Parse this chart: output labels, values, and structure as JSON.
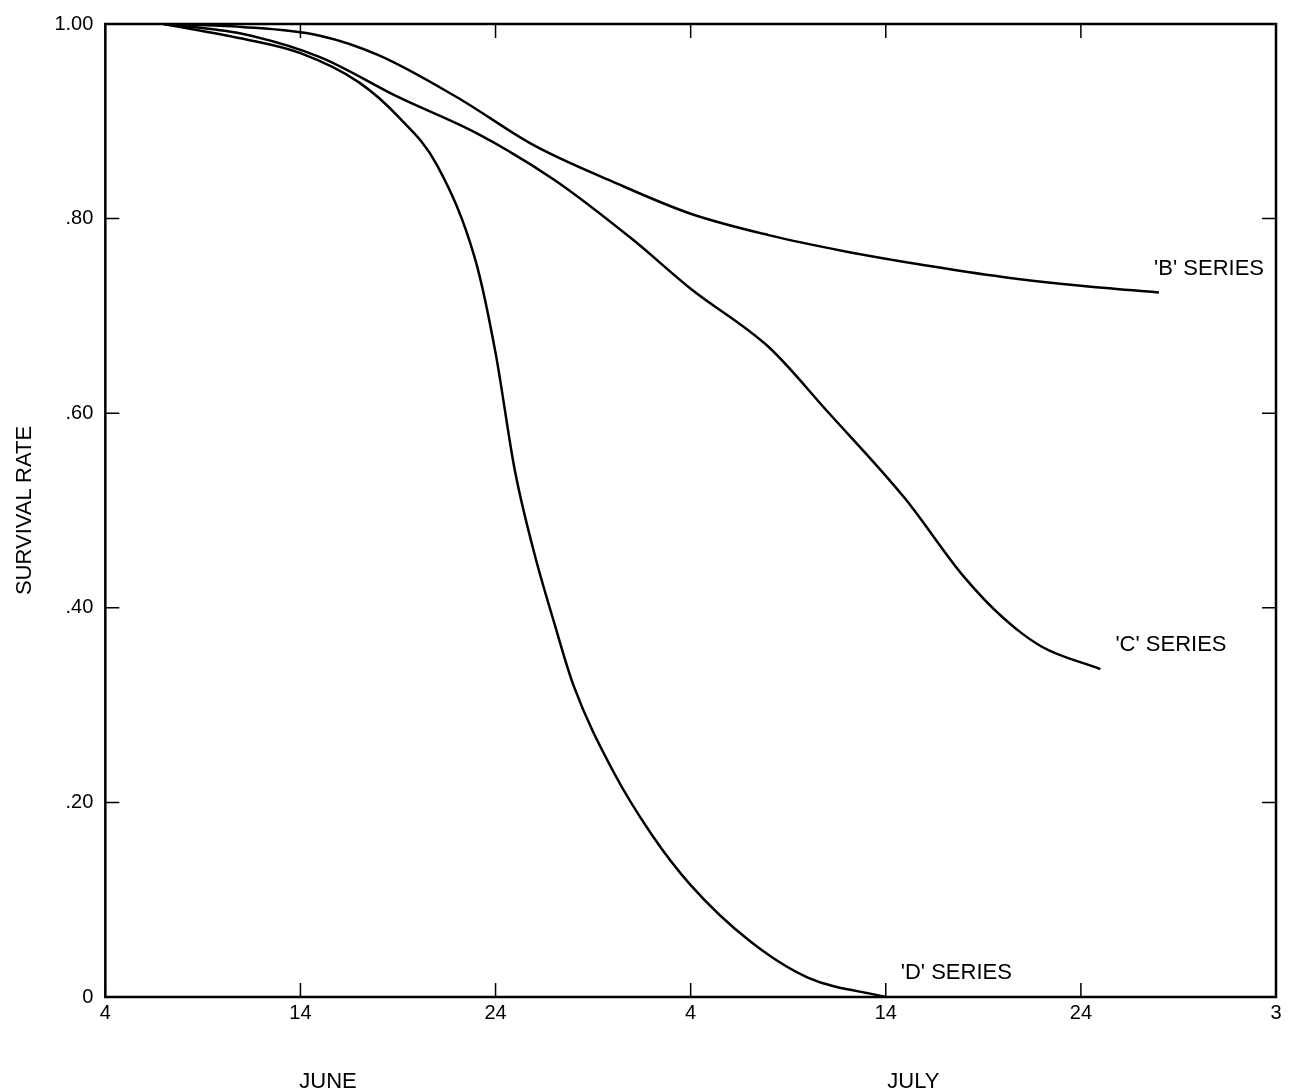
{
  "chart_data": {
    "type": "line",
    "ylabel": "SURVIVAL RATE",
    "xlim": [
      "--06-04",
      "--08-03"
    ],
    "xticks": [
      {
        "value": "--06-04",
        "label": "4"
      },
      {
        "value": "--06-14",
        "label": "14"
      },
      {
        "value": "--06-24",
        "label": "24"
      },
      {
        "value": "--07-04",
        "label": "4"
      },
      {
        "value": "--07-14",
        "label": "14"
      },
      {
        "value": "--07-24",
        "label": "24"
      },
      {
        "value": "--08-03",
        "label": "3"
      }
    ],
    "ylim": [
      0,
      1
    ],
    "yticks": [
      {
        "value": 0,
        "label": "0"
      },
      {
        "value": 0.2,
        "label": ".20"
      },
      {
        "value": 0.4,
        "label": ".40"
      },
      {
        "value": 0.6,
        "label": ".60"
      },
      {
        "value": 0.8,
        "label": ".80"
      },
      {
        "value": 1,
        "label": "1.00"
      }
    ],
    "grid": false,
    "legend": false,
    "marker": "none",
    "line_style": "solid",
    "annotations": [
      "JUNE",
      "JULY"
    ],
    "series": [
      {
        "name": "'B' SERIES",
        "color": "#000000",
        "x": [
          "--06-07",
          "--06-11",
          "--06-15",
          "--06-18",
          "--06-22",
          "--06-26",
          "--06-30",
          "--07-04",
          "--07-08",
          "--07-12",
          "--07-16",
          "--07-20",
          "--07-24",
          "--07-28"
        ],
        "values": [
          1.0,
          0.997,
          0.988,
          0.968,
          0.925,
          0.875,
          0.838,
          0.805,
          0.783,
          0.766,
          0.752,
          0.74,
          0.731,
          0.724
        ]
      },
      {
        "name": "'C' SERIES",
        "color": "#000000",
        "x": [
          "--06-07",
          "--06-11",
          "--06-15",
          "--06-19",
          "--06-23",
          "--06-27",
          "--07-01",
          "--07-04",
          "--07-08",
          "--07-11",
          "--07-15",
          "--07-18",
          "--07-20",
          "--07-22",
          "--07-25"
        ],
        "values": [
          1.0,
          0.99,
          0.966,
          0.925,
          0.888,
          0.84,
          0.779,
          0.728,
          0.668,
          0.602,
          0.512,
          0.432,
          0.39,
          0.36,
          0.337
        ]
      },
      {
        "name": "'D' SERIES",
        "color": "#000000",
        "x": [
          "--06-07",
          "--06-11",
          "--06-14",
          "--06-17",
          "--06-19",
          "--06-21",
          "--06-23",
          "--06-24",
          "--06-25",
          "--06-26",
          "--06-27",
          "--06-28",
          "--06-30",
          "--07-02",
          "--07-04",
          "--07-07",
          "--07-10",
          "--07-14"
        ],
        "values": [
          1.0,
          0.985,
          0.97,
          0.94,
          0.905,
          0.855,
          0.755,
          0.662,
          0.54,
          0.455,
          0.385,
          0.32,
          0.233,
          0.167,
          0.115,
          0.058,
          0.02,
          0
        ]
      }
    ]
  }
}
